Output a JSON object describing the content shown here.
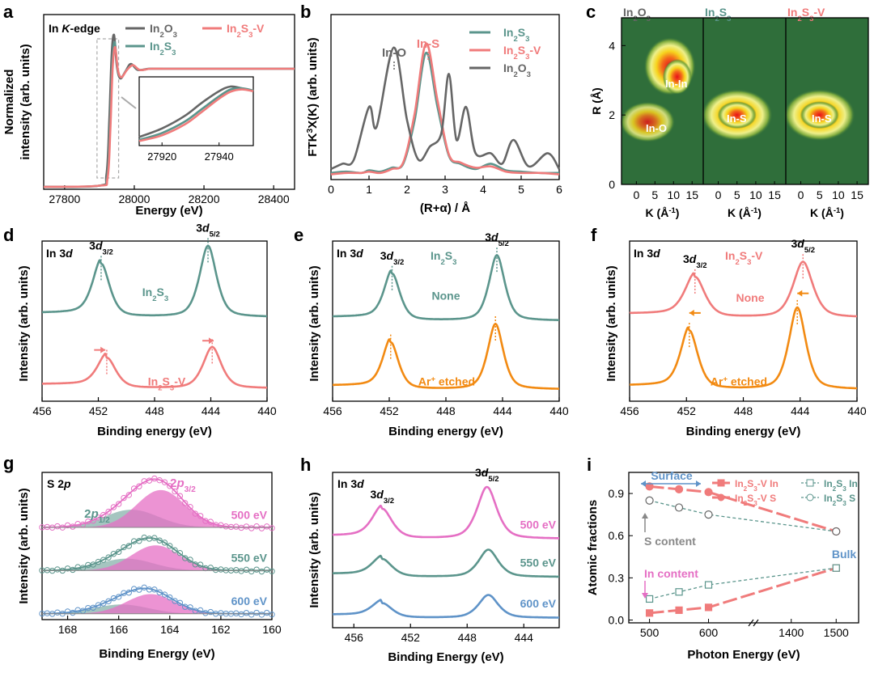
{
  "colors": {
    "gray": "#666666",
    "teal": "#5b958c",
    "red": "#f07b7b",
    "orange": "#f28a12",
    "pink": "#e56fc4",
    "blue": "#5f93c8",
    "heat_dark": "#2f6e3a",
    "heat_hot": "#e8101a"
  },
  "chart_data": [
    {
      "panel": "a",
      "type": "line",
      "title": "In K-edge",
      "xlabel": "Energy (eV)",
      "ylabel": "Normalized intensity (arb. units)",
      "xticks": [
        "27800",
        "28000",
        "28200",
        "28400"
      ],
      "xlim": [
        27740,
        28460
      ],
      "ylim": [
        0,
        1.45
      ],
      "series": [
        {
          "name": "In2O3",
          "color_key": "gray",
          "x": [
            27740,
            27900,
            27920,
            27928,
            27935,
            27942,
            27950,
            27960,
            27975,
            27990,
            28010,
            28040,
            28080,
            28150,
            28250,
            28460
          ],
          "y": [
            0.02,
            0.03,
            0.12,
            0.55,
            1.12,
            1.28,
            1.02,
            0.92,
            0.98,
            1.04,
            0.99,
            1.0,
            1.0,
            1.0,
            1.0,
            1.0
          ]
        },
        {
          "name": "In2S3",
          "color_key": "teal",
          "x": [
            27740,
            27900,
            27922,
            27930,
            27937,
            27944,
            27952,
            27962,
            27978,
            27995,
            28015,
            28045,
            28085,
            28150,
            28250,
            28460
          ],
          "y": [
            0.02,
            0.03,
            0.1,
            0.5,
            1.05,
            1.22,
            1.0,
            0.93,
            0.99,
            1.03,
            0.99,
            1.0,
            1.0,
            1.0,
            1.0,
            1.0
          ]
        },
        {
          "name": "In2S3-V",
          "color_key": "red",
          "x": [
            27740,
            27900,
            27923,
            27931,
            27938,
            27945,
            27953,
            27963,
            27979,
            27996,
            28016,
            28046,
            28086,
            28150,
            28250,
            28460
          ],
          "y": [
            0.02,
            0.03,
            0.09,
            0.47,
            1.02,
            1.18,
            0.99,
            0.93,
            0.99,
            1.03,
            0.99,
            1.0,
            1.0,
            1.0,
            1.0,
            1.0
          ]
        }
      ],
      "inset": {
        "xticks": [
          "27920",
          "27940"
        ],
        "xlim": [
          27912,
          27952
        ],
        "ylim": [
          0.1,
          1.3
        ],
        "series": [
          {
            "color_key": "gray",
            "x": [
              27912,
              27920,
              27928,
              27934,
              27940,
              27944,
              27948,
              27952
            ],
            "y": [
              0.25,
              0.4,
              0.62,
              0.85,
              1.05,
              1.13,
              1.1,
              1.05
            ]
          },
          {
            "color_key": "teal",
            "x": [
              27912,
              27920,
              27928,
              27934,
              27940,
              27944,
              27948,
              27952
            ],
            "y": [
              0.2,
              0.32,
              0.52,
              0.74,
              0.96,
              1.08,
              1.1,
              1.06
            ]
          },
          {
            "color_key": "red",
            "x": [
              27912,
              27920,
              27928,
              27934,
              27940,
              27944,
              27948,
              27952
            ],
            "y": [
              0.18,
              0.28,
              0.47,
              0.69,
              0.92,
              1.04,
              1.08,
              1.05
            ]
          }
        ]
      }
    },
    {
      "panel": "b",
      "type": "line",
      "xlabel": "(R+α) / Å",
      "ylabel": "FTK3X(K) (arb. units)",
      "xticks": [
        "0",
        "1",
        "2",
        "3",
        "4",
        "5",
        "6"
      ],
      "xlim": [
        0,
        6
      ],
      "ylim": [
        0,
        1.25
      ],
      "annotations": [
        "In-O",
        "In-S"
      ],
      "series": [
        {
          "name": "In2S3",
          "color_key": "teal",
          "x": [
            0,
            0.4,
            0.8,
            1.0,
            1.3,
            1.6,
            1.9,
            2.2,
            2.5,
            2.8,
            3.1,
            3.4,
            3.8,
            4.2,
            4.6,
            5.0,
            5.5,
            6.0
          ],
          "y": [
            0.05,
            0.06,
            0.05,
            0.07,
            0.06,
            0.09,
            0.12,
            0.45,
            0.96,
            0.55,
            0.18,
            0.12,
            0.08,
            0.12,
            0.07,
            0.06,
            0.05,
            0.05
          ]
        },
        {
          "name": "In2S3-V",
          "color_key": "red",
          "x": [
            0,
            0.4,
            0.8,
            1.0,
            1.3,
            1.6,
            1.9,
            2.2,
            2.5,
            2.8,
            3.1,
            3.4,
            3.8,
            4.2,
            4.6,
            5.0,
            5.5,
            6.0
          ],
          "y": [
            0.04,
            0.05,
            0.05,
            0.06,
            0.05,
            0.08,
            0.13,
            0.5,
            1.03,
            0.6,
            0.19,
            0.13,
            0.09,
            0.1,
            0.06,
            0.05,
            0.05,
            0.04
          ]
        },
        {
          "name": "In2O3",
          "color_key": "gray",
          "x": [
            0,
            0.3,
            0.6,
            1.0,
            1.2,
            1.65,
            2.0,
            2.3,
            2.6,
            2.9,
            3.1,
            3.3,
            3.55,
            3.8,
            4.2,
            4.5,
            4.8,
            5.2,
            5.7,
            6.0
          ],
          "y": [
            0.08,
            0.12,
            0.15,
            0.55,
            0.4,
            1.0,
            0.45,
            0.15,
            0.25,
            0.35,
            0.8,
            0.3,
            0.55,
            0.2,
            0.2,
            0.12,
            0.3,
            0.1,
            0.2,
            0.08
          ]
        }
      ]
    },
    {
      "panel": "c",
      "type": "heatmap",
      "ylabel": "R (Å)",
      "xlabel": "K (Å-1)",
      "yticks": [
        "0",
        "2",
        "4"
      ],
      "xticks": [
        "0",
        "5",
        "10",
        "15"
      ],
      "subplots": [
        {
          "name": "In2O3",
          "labels": [
            "In-In",
            "In-O"
          ]
        },
        {
          "name": "In2S3",
          "labels": [
            "In-S"
          ]
        },
        {
          "name": "In2S3-V",
          "labels": [
            "In-S"
          ]
        }
      ]
    },
    {
      "panel": "d",
      "type": "line",
      "title": "In 3d",
      "xlabel": "Binding energy (eV)",
      "ylabel": "Intensity (arb. units)",
      "xticks": [
        "456",
        "452",
        "448",
        "444",
        "440"
      ],
      "xlim": [
        456,
        440
      ],
      "peak_labels": [
        "3d3/2",
        "3d5/2"
      ],
      "series": [
        {
          "name": "In2S3",
          "color_key": "teal",
          "peaks": [
            451.8,
            444.2
          ],
          "heights": [
            0.75,
            1.0
          ],
          "width": 0.65,
          "offset": 1.0
        },
        {
          "name": "In2S3-V",
          "color_key": "red",
          "peaks": [
            451.4,
            443.9
          ],
          "heights": [
            0.43,
            0.58
          ],
          "width": 0.7,
          "offset": 0.0
        }
      ]
    },
    {
      "panel": "e",
      "type": "line",
      "title": "In 3d",
      "subtitle": "In2S3",
      "xlabel": "Binding energy (eV)",
      "ylabel": "Intensity (arb. units)",
      "xticks": [
        "456",
        "452",
        "448",
        "444",
        "440"
      ],
      "xlim": [
        456,
        440
      ],
      "peak_labels": [
        "3d3/2",
        "3d5/2"
      ],
      "series": [
        {
          "name": "None",
          "color_key": "teal",
          "peaks": [
            451.8,
            444.4
          ],
          "heights": [
            0.72,
            1.0
          ],
          "width": 0.6,
          "offset": 1.05
        },
        {
          "name": "Ar+ etched",
          "color_key": "orange",
          "peaks": [
            451.9,
            444.5
          ],
          "heights": [
            0.72,
            1.0
          ],
          "width": 0.6,
          "offset": 0.0
        }
      ]
    },
    {
      "panel": "f",
      "type": "line",
      "title": "In 3d",
      "subtitle": "In2S3-V",
      "xlabel": "Binding energy (eV)",
      "ylabel": "Intensity (arb. units)",
      "xticks": [
        "456",
        "452",
        "448",
        "444",
        "440"
      ],
      "xlim": [
        456,
        440
      ],
      "peak_labels": [
        "3d3/2",
        "3d5/2"
      ],
      "series": [
        {
          "name": "None",
          "color_key": "red",
          "peaks": [
            451.4,
            443.8
          ],
          "heights": [
            0.62,
            0.85
          ],
          "width": 0.75,
          "offset": 1.1
        },
        {
          "name": "Ar+ etched",
          "color_key": "orange",
          "peaks": [
            451.8,
            444.2
          ],
          "heights": [
            0.9,
            1.25
          ],
          "width": 0.65,
          "offset": 0.0
        }
      ]
    },
    {
      "panel": "g",
      "type": "line",
      "title": "S 2p",
      "xlabel": "Binding Energy (eV)",
      "ylabel": "Intensity (arb. units)",
      "xticks": [
        "168",
        "166",
        "164",
        "162",
        "160"
      ],
      "xlim": [
        169,
        160
      ],
      "peak_labels": [
        "2p1/2",
        "2p3/2"
      ],
      "series": [
        {
          "name": "500 eV",
          "color_key": "pink",
          "offset": 2.2,
          "scale": 1.0
        },
        {
          "name": "550 eV",
          "color_key": "teal",
          "offset": 1.1,
          "scale": 0.45
        },
        {
          "name": "600 eV",
          "color_key": "blue",
          "offset": 0.0,
          "scale": 0.35
        }
      ]
    },
    {
      "panel": "h",
      "type": "line",
      "title": "In 3d",
      "xlabel": "Binding Energy (eV)",
      "ylabel": "Intensity (arb. units)",
      "xticks": [
        "456",
        "452",
        "448",
        "444"
      ],
      "xlim": [
        457.5,
        441.5
      ],
      "peak_labels": [
        "3d3/2",
        "3d5/2"
      ],
      "series": [
        {
          "name": "500 eV",
          "color_key": "pink",
          "peaks": [
            454.0,
            446.6
          ],
          "heights": [
            0.55,
            0.95
          ],
          "width": 0.75,
          "offset": 1.45
        },
        {
          "name": "550 eV",
          "color_key": "teal",
          "peaks": [
            454.0,
            446.5
          ],
          "heights": [
            0.33,
            0.5
          ],
          "width": 0.75,
          "offset": 0.75
        },
        {
          "name": "600 eV",
          "color_key": "blue",
          "peaks": [
            454.0,
            446.5
          ],
          "heights": [
            0.27,
            0.42
          ],
          "width": 0.75,
          "offset": 0.0
        }
      ]
    },
    {
      "panel": "i",
      "type": "scatter",
      "xlabel": "Photon Energy (eV)",
      "ylabel": "Atomic fractions",
      "xticks": [
        "500",
        "600",
        "1400",
        "1500"
      ],
      "yticks": [
        "0.0",
        "0.3",
        "0.6",
        "0.9"
      ],
      "ylim": [
        -0.02,
        1.05
      ],
      "annotations": [
        "Surface",
        "Bulk",
        "S content",
        "In content"
      ],
      "series": [
        {
          "name": "In2S3-V In",
          "color_key": "red",
          "marker": "square-filled",
          "x": [
            500,
            550,
            600,
            1500
          ],
          "y": [
            0.05,
            0.07,
            0.09,
            0.37
          ]
        },
        {
          "name": "In2S3-V S",
          "color_key": "red",
          "marker": "circle-filled",
          "x": [
            500,
            550,
            600,
            1500
          ],
          "y": [
            0.95,
            0.93,
            0.91,
            0.63
          ]
        },
        {
          "name": "In2S3 In",
          "color_key": "teal",
          "marker": "square-open",
          "x": [
            500,
            550,
            600,
            1500
          ],
          "y": [
            0.15,
            0.2,
            0.25,
            0.37
          ]
        },
        {
          "name": "In2S3 S",
          "color_key": "teal",
          "marker": "circle-open",
          "x": [
            500,
            550,
            600,
            1500
          ],
          "y": [
            0.85,
            0.8,
            0.75,
            0.63
          ]
        }
      ]
    }
  ]
}
